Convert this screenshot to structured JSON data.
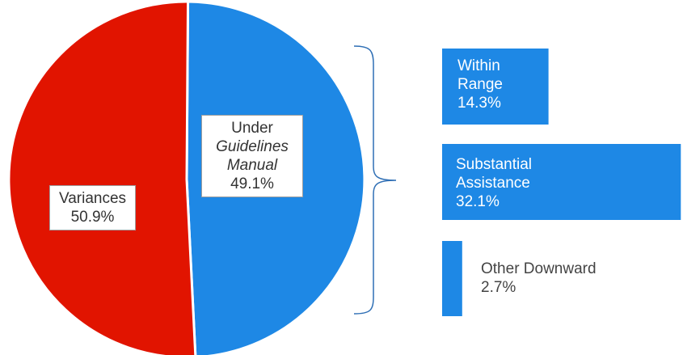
{
  "colors": {
    "variances": "#e11400",
    "guidelines": "#1e88e5",
    "bars": "#1e88e5",
    "brace": "#2f6fb5"
  },
  "chart_data": [
    {
      "type": "pie",
      "slices": [
        {
          "label": "Under Guidelines Manual",
          "value": 49.1,
          "color": "#1e88e5"
        },
        {
          "label": "Variances",
          "value": 50.9,
          "color": "#e11400"
        }
      ]
    },
    {
      "type": "bar",
      "orientation": "horizontal",
      "categories": [
        "Within Range",
        "Substantial Assistance",
        "Other Downward"
      ],
      "values": [
        14.3,
        32.1,
        2.7
      ]
    }
  ],
  "labels": {
    "guidelines": {
      "line1": "Under",
      "line2": "Guidelines",
      "line3": "Manual",
      "pct": "49.1%"
    },
    "variances": {
      "name": "Variances",
      "pct": "50.9%"
    },
    "bars": [
      {
        "line1": "Within",
        "line2": "Range",
        "pct": "14.3%"
      },
      {
        "line1": "Substantial",
        "line2": "Assistance",
        "pct": "32.1%"
      },
      {
        "line1": "Other Downward",
        "pct": "2.7%"
      }
    ]
  }
}
